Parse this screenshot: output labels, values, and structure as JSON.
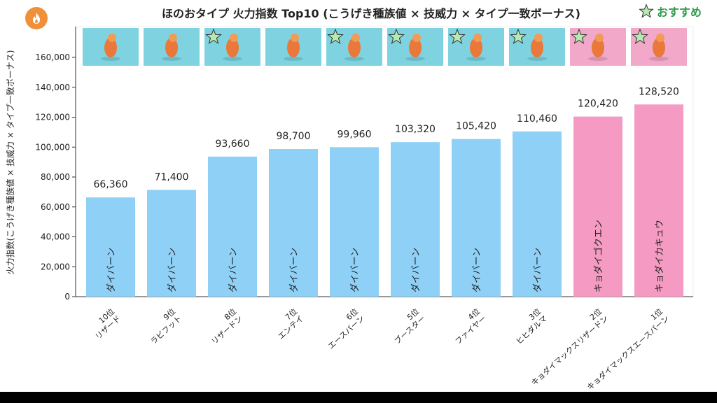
{
  "chart_data": {
    "type": "bar",
    "title": "ほのおタイプ 火力指数 Top10 (こうげき種族値 × 技威力 × タイプ一致ボーナス)",
    "ylabel": "火力指数(こうげき種族値 × 技威力 × タイプ一致ボーナス)",
    "ylim": [
      0,
      180000
    ],
    "yticks": [
      0,
      20000,
      40000,
      60000,
      80000,
      100000,
      120000,
      140000,
      160000
    ],
    "ytick_labels": [
      "0",
      "20,000",
      "40,000",
      "60,000",
      "80,000",
      "100,000",
      "120,000",
      "140,000",
      "160,000"
    ],
    "grid": false,
    "values": [
      66360,
      71400,
      93660,
      98700,
      99960,
      103320,
      105420,
      110460,
      120420,
      128520
    ],
    "value_labels": [
      "66,360",
      "71,400",
      "93,660",
      "98,700",
      "99,960",
      "103,320",
      "105,420",
      "110,460",
      "120,420",
      "128,520"
    ],
    "ranks": [
      "10位",
      "9位",
      "8位",
      "7位",
      "6位",
      "5位",
      "4位",
      "3位",
      "2位",
      "1位"
    ],
    "names": [
      "リザード",
      "ラビフット",
      "リザードン",
      "エンテイ",
      "エースバーン",
      "ブースター",
      "ファイヤー",
      "ヒヒダルマ",
      "キョダイマックスリザードン",
      "キョダイマックスエースバーン"
    ],
    "moves": [
      "ダイバーン",
      "ダイバーン",
      "ダイバーン",
      "ダイバーン",
      "ダイバーン",
      "ダイバーン",
      "ダイバーン",
      "ダイバーン",
      "キョダイゴクエン",
      "キョダイカキュウ"
    ],
    "recommended": [
      false,
      false,
      true,
      false,
      true,
      true,
      true,
      true,
      true,
      true
    ],
    "bar_colors": [
      "#8fd0f7",
      "#8fd0f7",
      "#8fd0f7",
      "#8fd0f7",
      "#8fd0f7",
      "#8fd0f7",
      "#8fd0f7",
      "#8fd0f7",
      "#f59ac3",
      "#f59ac3"
    ]
  },
  "legend": {
    "star_label": "おすすめ",
    "star_color": "#b6eab0"
  },
  "colors": {
    "accent": "#f0903a",
    "thumb_normal": "#7fd3e0",
    "thumb_gmax": "#f2a8c8",
    "axis": "#333333"
  },
  "icons": {
    "app": "flame-icon",
    "recommend": "star-icon"
  }
}
